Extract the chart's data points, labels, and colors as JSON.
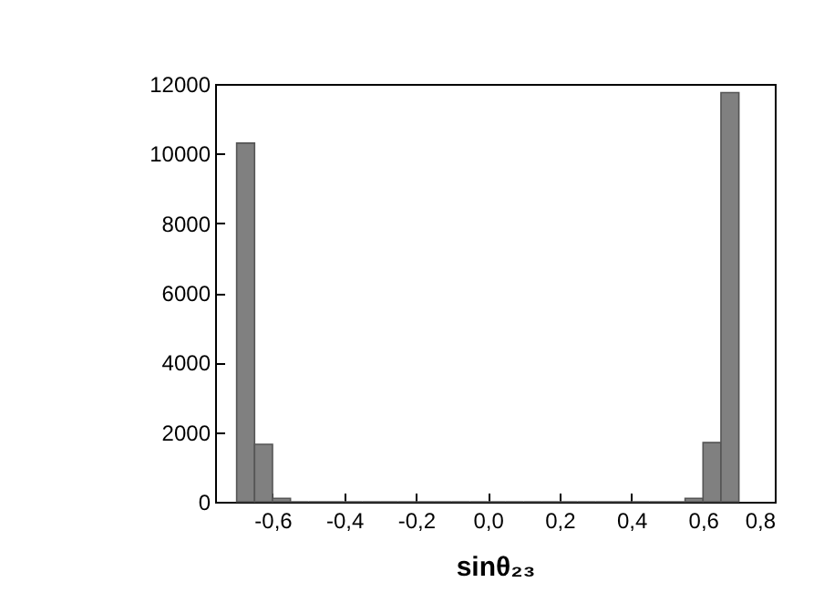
{
  "chart_data": {
    "type": "histogram",
    "xlabel": "sinθ₂₃",
    "color": "#808080",
    "bins": [
      -0.7,
      -0.65,
      -0.6,
      -0.55,
      -0.5,
      -0.45,
      -0.4,
      -0.35,
      -0.3,
      -0.25,
      -0.2,
      -0.15,
      -0.1,
      -0.05,
      0,
      0.05,
      0.1,
      0.15,
      0.2,
      0.25,
      0.3,
      0.35,
      0.4,
      0.45,
      0.5,
      0.55,
      0.6,
      0.65,
      0.7
    ],
    "values": [
      10300,
      1650,
      100,
      0,
      0,
      0,
      0,
      0,
      0,
      0,
      0,
      0,
      0,
      0,
      0,
      0,
      0,
      0,
      0,
      0,
      0,
      0,
      0,
      0,
      0,
      100,
      1700,
      11750
    ],
    "xlim": [
      -0.76,
      0.8
    ],
    "xticks": [
      {
        "value": -0.6,
        "label": "-0,6"
      },
      {
        "value": -0.4,
        "label": "-0,4"
      },
      {
        "value": -0.2,
        "label": "-0,2"
      },
      {
        "value": 0,
        "label": "0,0"
      },
      {
        "value": 0.2,
        "label": "0,2"
      },
      {
        "value": 0.4,
        "label": "0,4"
      },
      {
        "value": 0.6,
        "label": "0,6"
      },
      {
        "value": 0.8,
        "label": "0,8"
      }
    ],
    "ylim": [
      0,
      12000
    ],
    "yticks": [
      0,
      2000,
      4000,
      6000,
      8000,
      10000,
      12000
    ],
    "grid": false
  }
}
